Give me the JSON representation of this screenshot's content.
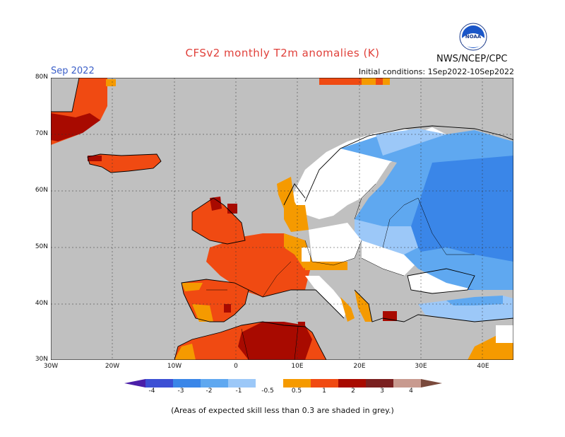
{
  "title": "CFSv2 monthly T2m anomalies (K)",
  "agency": "NWS/NCEP/CPC",
  "logo_text": "NOAA",
  "valid_label": "Sep 2022",
  "initial_conditions": "Initial conditions: 1Sep2022-10Sep2022",
  "footnote": "(Areas of expected skill less than 0.3 are shaded in grey.)",
  "lat_labels": [
    "80N",
    "70N",
    "60N",
    "50N",
    "40N",
    "30N"
  ],
  "lon_labels": [
    "30W",
    "20W",
    "10W",
    "0",
    "10E",
    "20E",
    "30E",
    "40E"
  ],
  "legend": {
    "labels": [
      "-4",
      "-3",
      "-2",
      "-1",
      "-0.5",
      "0.5",
      "1",
      "2",
      "3",
      "4"
    ],
    "colors": [
      "#4b1fa8",
      "#3c4fd4",
      "#3a86e8",
      "#5fa8f0",
      "#9cc8f8",
      "#ffffff",
      "#f59a00",
      "#f04a12",
      "#a80a00",
      "#c89a8f",
      "#7a4a3c"
    ]
  },
  "map": {
    "lon_range": [
      -30,
      45
    ],
    "lat_range": [
      30,
      80
    ],
    "background": "#c0c0c0",
    "colors": {
      "warm1": "#f59a00",
      "warm2": "#f04a12",
      "warm3": "#a80a00",
      "cool1": "#9cc8f8",
      "cool2": "#5fa8f0",
      "cool3": "#3a86e8",
      "neutral": "#ffffff"
    }
  }
}
